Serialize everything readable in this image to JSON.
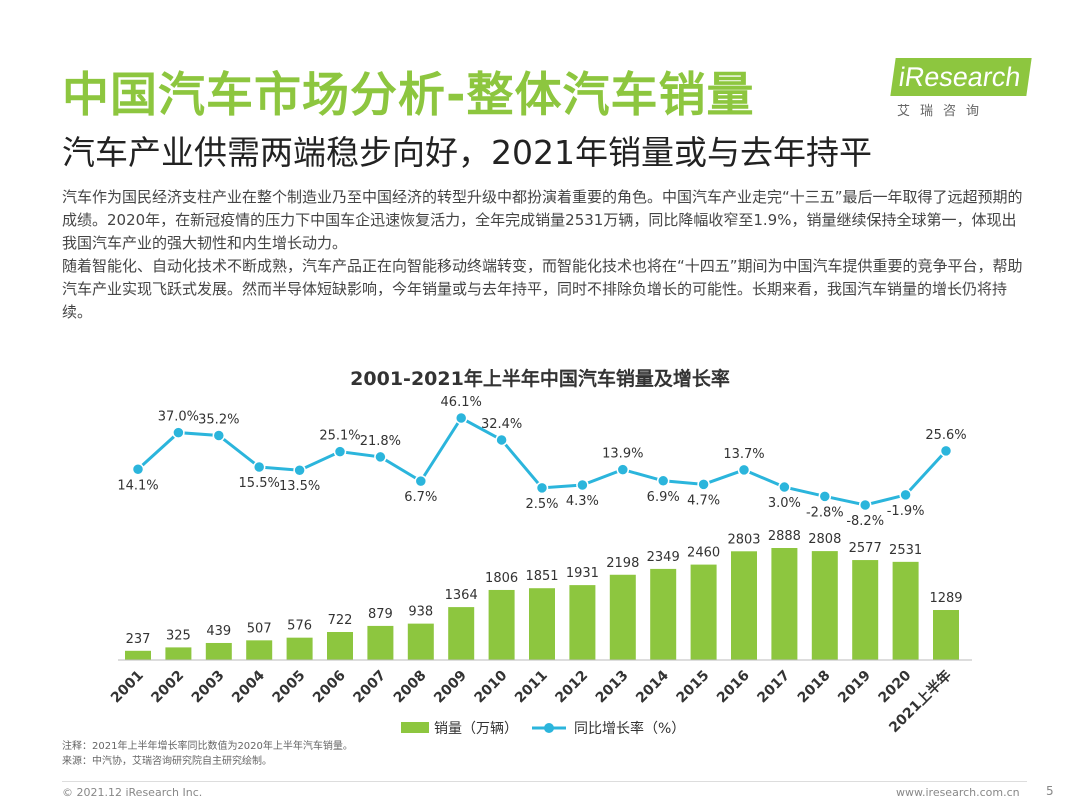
{
  "header": {
    "title": "中国汽车市场分析-整体汽车销量",
    "subtitle": "汽车产业供需两端稳步向好，2021年销量或与去年持平"
  },
  "logo": {
    "text": "iResearch",
    "subtext": "艾瑞咨询"
  },
  "body": {
    "paragraph1": "汽车作为国民经济支柱产业在整个制造业乃至中国经济的转型升级中都扮演着重要的角色。中国汽车产业走完“十三五”最后一年取得了远超预期的成绩。2020年，在新冠疫情的压力下中国车企迅速恢复活力，全年完成销量2531万辆，同比降幅收窄至1.9%，销量继续保持全球第一，体现出我国汽车产业的强大韧性和内生增长动力。",
    "paragraph2": "随着智能化、自动化技术不断成熟，汽车产品正在向智能移动终端转变，而智能化技术也将在“十四五”期间为中国汽车提供重要的竞争平台，帮助汽车产业实现飞跃式发展。然而半导体短缺影响，今年销量或与去年持平，同时不排除负增长的可能性。长期来看，我国汽车销量的增长仍将持续。"
  },
  "chart_data": {
    "type": "bar+line",
    "title": "2001-2021年上半年中国汽车销量及增长率",
    "categories": [
      "2001",
      "2002",
      "2003",
      "2004",
      "2005",
      "2006",
      "2007",
      "2008",
      "2009",
      "2010",
      "2011",
      "2012",
      "2013",
      "2014",
      "2015",
      "2016",
      "2017",
      "2018",
      "2019",
      "2020",
      "2021上半年"
    ],
    "series": [
      {
        "name": "销量（万辆）",
        "type": "bar",
        "values": [
          237,
          325,
          439,
          507,
          576,
          722,
          879,
          938,
          1364,
          1806,
          1851,
          1931,
          2198,
          2349,
          2460,
          2803,
          2888,
          2808,
          2577,
          2531,
          1289
        ]
      },
      {
        "name": "同比增长率（%）",
        "type": "line",
        "values": [
          14.1,
          37.0,
          35.2,
          15.5,
          13.5,
          25.1,
          21.8,
          6.7,
          46.1,
          32.4,
          2.5,
          4.3,
          13.9,
          6.9,
          4.7,
          13.7,
          3.0,
          -2.8,
          -8.2,
          -1.9,
          25.6
        ]
      }
    ],
    "line_labels": [
      "14.1%",
      "37.0%",
      "35.2%",
      "15.5%",
      "13.5%",
      "25.1%",
      "21.8%",
      "6.7%",
      "46.1%",
      "32.4%",
      "2.5%",
      "4.3%",
      "13.9%",
      "6.9%",
      "4.7%",
      "13.7%",
      "3.0%",
      "-2.8%",
      "-8.2%",
      "-1.9%",
      "25.6%"
    ],
    "bar_color": "#8dc63f",
    "line_color": "#2bb5dc",
    "legend": [
      "销量（万辆）",
      "同比增长率（%）"
    ],
    "legend_position": "bottom-center"
  },
  "notes": {
    "note": "注释：2021年上半年增长率同比数值为2020年上半年汽车销量。",
    "source": "来源：中汽协，艾瑞咨询研究院自主研究绘制。"
  },
  "footer": {
    "copyright": "© 2021.12 iResearch Inc.",
    "website": "www.iresearch.com.cn",
    "page": "5"
  }
}
